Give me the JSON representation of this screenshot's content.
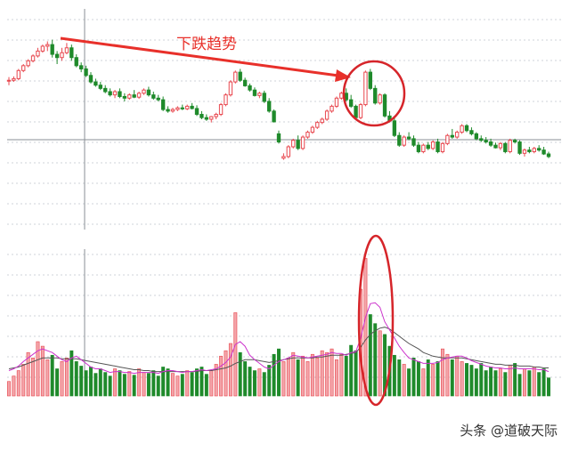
{
  "chart_data": {
    "type": "candlestick+volume",
    "colors": {
      "up": "#e8484f",
      "down": "#1f8a2b",
      "annotation": "#e8302a",
      "ma1": "#cc33cc",
      "ma2": "#555555"
    },
    "candles": [
      [
        96,
        97,
        94.5,
        96
      ],
      [
        96,
        97.2,
        95.5,
        96.5
      ],
      [
        96.5,
        99.5,
        96,
        99
      ],
      [
        99,
        101,
        98.5,
        100.5
      ],
      [
        100.5,
        102.5,
        100,
        102
      ],
      [
        102,
        104,
        101.5,
        103.5
      ],
      [
        103.5,
        106,
        103,
        105
      ],
      [
        105,
        107,
        104.5,
        106.5
      ],
      [
        106.5,
        108,
        105,
        107
      ],
      [
        107,
        108.5,
        103,
        104
      ],
      [
        104,
        105,
        101,
        103
      ],
      [
        103,
        106,
        102,
        104.5
      ],
      [
        104.5,
        107.5,
        104,
        106
      ],
      [
        106,
        107,
        102,
        103
      ],
      [
        103,
        104,
        100,
        100.5
      ],
      [
        100.5,
        101.5,
        98.5,
        99.5
      ],
      [
        99.5,
        100.5,
        97,
        97.5
      ],
      [
        97.5,
        98.5,
        95,
        95.5
      ],
      [
        95.5,
        96.5,
        94,
        94.5
      ],
      [
        94.5,
        95.5,
        93,
        93.5
      ],
      [
        93.5,
        94.5,
        92,
        92.5
      ],
      [
        92.5,
        93.5,
        91,
        91.5
      ],
      [
        91.5,
        93,
        90.5,
        92.5
      ],
      [
        92.5,
        93.5,
        90.5,
        91
      ],
      [
        91,
        92,
        89.5,
        90.5
      ],
      [
        90.5,
        92,
        90,
        91.5
      ],
      [
        91.5,
        93,
        90.5,
        90.8
      ],
      [
        90.8,
        92.5,
        90.3,
        92
      ],
      [
        92,
        93.5,
        91.5,
        93
      ],
      [
        93,
        94,
        91,
        91.5
      ],
      [
        91.5,
        92.5,
        90,
        90.5
      ],
      [
        90.5,
        91.5,
        89.5,
        90
      ],
      [
        90,
        91,
        86.5,
        87
      ],
      [
        87,
        88,
        86,
        86.5
      ],
      [
        86.5,
        87.5,
        86,
        87
      ],
      [
        87,
        88,
        86.5,
        87.5
      ],
      [
        87.5,
        88.5,
        86.8,
        87.2
      ],
      [
        87.2,
        88.5,
        86.8,
        88
      ],
      [
        88,
        89,
        87,
        87.3
      ],
      [
        87.3,
        88.3,
        85,
        85.5
      ],
      [
        85.5,
        86.5,
        84,
        84.5
      ],
      [
        84.5,
        85.5,
        83.5,
        84
      ],
      [
        84,
        85,
        83,
        84.8
      ],
      [
        84.8,
        86,
        84,
        85.5
      ],
      [
        85.5,
        89,
        85,
        88.5
      ],
      [
        88.5,
        92,
        88,
        91.5
      ],
      [
        91.5,
        96,
        91,
        95.5
      ],
      [
        95.5,
        99,
        95,
        98.5
      ],
      [
        98.5,
        99.5,
        95.5,
        96
      ],
      [
        96,
        96.8,
        94,
        94.3
      ],
      [
        94.3,
        95,
        92.5,
        93
      ],
      [
        93,
        93.8,
        91,
        91.3
      ],
      [
        91.3,
        92.5,
        90.5,
        92
      ],
      [
        92,
        92.8,
        89,
        89.5
      ],
      [
        89.5,
        90.5,
        86,
        86.5
      ],
      [
        86.5,
        87,
        83,
        83.2
      ],
      [
        79.5,
        80.5,
        76.5,
        77
      ],
      [
        72,
        73.5,
        71.5,
        72.5
      ],
      [
        72.5,
        76,
        72,
        75.5
      ],
      [
        75.5,
        78,
        75,
        77.5
      ],
      [
        77.5,
        79,
        74.5,
        75
      ],
      [
        75,
        79,
        74.5,
        78.5
      ],
      [
        78.5,
        80.5,
        78,
        80
      ],
      [
        80,
        82,
        79.5,
        81.5
      ],
      [
        81.5,
        83.5,
        81,
        83
      ],
      [
        83,
        84.5,
        82.5,
        84
      ],
      [
        84,
        87,
        83.5,
        86.5
      ],
      [
        86.5,
        88.5,
        86,
        88
      ],
      [
        88,
        91,
        87.5,
        90.5
      ],
      [
        90.5,
        92.5,
        90,
        92
      ],
      [
        92,
        93.5,
        89.5,
        90
      ],
      [
        90,
        91.5,
        87.5,
        88
      ],
      [
        88,
        88.5,
        84,
        84.5
      ],
      [
        84.5,
        89,
        84,
        88.5
      ],
      [
        88.5,
        99,
        88,
        98.5
      ],
      [
        98.5,
        99.5,
        93,
        93.5
      ],
      [
        93.5,
        94.5,
        88.5,
        89
      ],
      [
        89,
        92,
        88.5,
        91.5
      ],
      [
        91.5,
        92,
        84.5,
        85
      ],
      [
        85,
        86.5,
        83,
        83.5
      ],
      [
        83.5,
        84.5,
        78.5,
        79
      ],
      [
        79,
        80,
        75.5,
        76
      ],
      [
        76,
        79,
        75.5,
        78.5
      ],
      [
        78.5,
        80,
        77.5,
        78
      ],
      [
        78,
        79,
        75.5,
        76
      ],
      [
        76,
        77,
        73.5,
        74
      ],
      [
        74,
        76.5,
        73.5,
        76
      ],
      [
        76,
        77,
        74.5,
        75
      ],
      [
        75,
        77.5,
        74.5,
        77
      ],
      [
        77,
        78,
        73.5,
        74
      ],
      [
        74,
        77,
        73.5,
        76.5
      ],
      [
        76.5,
        79.5,
        76,
        79
      ],
      [
        79,
        81,
        78,
        78.5
      ],
      [
        78.5,
        80.5,
        78,
        80
      ],
      [
        80,
        82.5,
        79.5,
        82
      ],
      [
        82,
        82.5,
        80,
        80.5
      ],
      [
        80.5,
        81.5,
        79,
        79.5
      ],
      [
        79.5,
        80,
        77.5,
        78
      ],
      [
        78,
        79,
        77,
        77.5
      ],
      [
        77.5,
        78.5,
        76.5,
        77
      ],
      [
        77,
        78,
        75.5,
        76
      ],
      [
        76,
        76.8,
        75,
        75.2
      ],
      [
        75.2,
        77,
        74.5,
        76.5
      ],
      [
        76.5,
        77,
        73.5,
        74
      ],
      [
        74,
        78,
        73.5,
        77.5
      ],
      [
        77.5,
        78,
        76.5,
        77
      ],
      [
        77,
        77.5,
        73,
        73.5
      ],
      [
        73.5,
        75,
        72.5,
        74.5
      ],
      [
        74.5,
        75.5,
        73.5,
        74
      ],
      [
        74,
        75.5,
        73.5,
        75
      ],
      [
        75,
        76,
        74,
        74.5
      ],
      [
        74.5,
        75.5,
        73,
        73.3
      ],
      [
        73.3,
        74,
        72,
        72.5
      ]
    ],
    "volume": [
      16,
      22,
      28,
      35,
      48,
      42,
      60,
      55,
      40,
      45,
      30,
      38,
      42,
      50,
      38,
      33,
      28,
      32,
      25,
      30,
      26,
      22,
      30,
      28,
      24,
      27,
      23,
      30,
      26,
      25,
      28,
      22,
      32,
      30,
      25,
      22,
      24,
      28,
      26,
      30,
      32,
      24,
      28,
      35,
      44,
      50,
      58,
      92,
      48,
      38,
      32,
      28,
      30,
      26,
      34,
      46,
      52,
      38,
      42,
      48,
      40,
      44,
      38,
      46,
      42,
      50,
      48,
      52,
      40,
      46,
      44,
      56,
      50,
      118,
      152,
      90,
      80,
      72,
      68,
      55,
      45,
      40,
      35,
      30,
      42,
      38,
      30,
      40,
      35,
      38,
      52,
      46,
      40,
      44,
      38,
      36,
      34,
      30,
      36,
      28,
      32,
      28,
      30,
      26,
      34,
      36,
      24,
      30,
      28,
      32,
      26,
      30,
      20
    ],
    "ma_volume_short": [
      28,
      30,
      33,
      38,
      42,
      46,
      50,
      52,
      50,
      48,
      44,
      40,
      38,
      42,
      44,
      40,
      36,
      32,
      30,
      30,
      28,
      26,
      27,
      27,
      26,
      26,
      25,
      26,
      26,
      26,
      26,
      25,
      27,
      28,
      28,
      27,
      26,
      27,
      27,
      28,
      29,
      28,
      29,
      30,
      33,
      37,
      43,
      57,
      60,
      55,
      45,
      40,
      36,
      32,
      30,
      34,
      38,
      40,
      42,
      45,
      44,
      43,
      42,
      43,
      44,
      45,
      46,
      48,
      47,
      47,
      45,
      48,
      49,
      64,
      87,
      102,
      103,
      98,
      82,
      73,
      64,
      55,
      48,
      42,
      40,
      38,
      36,
      36,
      36,
      37,
      40,
      42,
      43,
      44,
      44,
      42,
      39,
      37,
      35,
      33,
      32,
      31,
      31,
      30,
      30,
      31,
      30,
      30,
      30,
      30,
      29,
      29,
      27
    ],
    "ma_volume_long": [
      30,
      31,
      32,
      34,
      36,
      38,
      40,
      42,
      42,
      42,
      42,
      41,
      41,
      41,
      41,
      40,
      39,
      38,
      37,
      36,
      35,
      34,
      33,
      32,
      31,
      30,
      29,
      29,
      28,
      28,
      27,
      27,
      27,
      27,
      27,
      27,
      27,
      27,
      27,
      27,
      28,
      28,
      28,
      29,
      30,
      31,
      33,
      36,
      38,
      40,
      40,
      40,
      39,
      38,
      37,
      38,
      39,
      40,
      41,
      42,
      42,
      42,
      42,
      42,
      43,
      43,
      44,
      45,
      45,
      45,
      46,
      47,
      48,
      54,
      62,
      68,
      72,
      75,
      76,
      74,
      70,
      66,
      62,
      58,
      55,
      52,
      48,
      46,
      44,
      43,
      42,
      42,
      42,
      42,
      42,
      41,
      40,
      39,
      38,
      37,
      36,
      35,
      35,
      34,
      34,
      34,
      33,
      33,
      33,
      32,
      32,
      31,
      31
    ],
    "annotation_text": "下跌趋势",
    "watermark": "头条 @道破天际"
  }
}
